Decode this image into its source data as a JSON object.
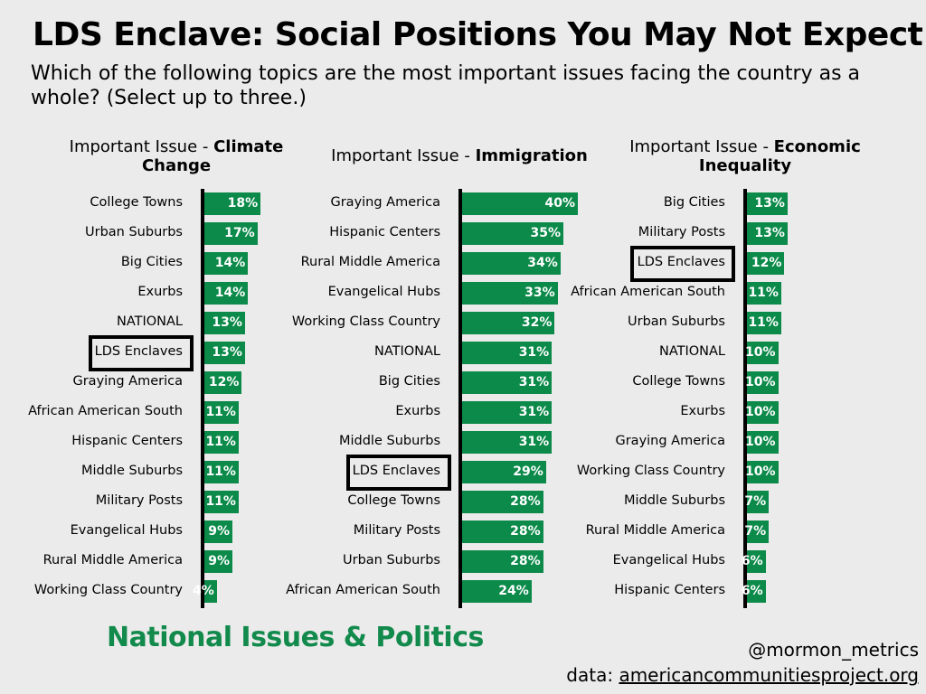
{
  "title": "LDS Enclave: Social Positions You May Not Expect",
  "subtitle": "Which of the following topics are the most important issues facing the country as a whole? (Select up to three.)",
  "footer": {
    "section": "National Issues & Politics",
    "handle": "@mormon_metrics",
    "source_prefix": "data: ",
    "source_link": "americancommunitiesproject.org"
  },
  "colors": {
    "bar": "#0c8a4a",
    "accent_text": "#128a4c",
    "background": "#ebebeb"
  },
  "chart_data": [
    {
      "type": "bar",
      "orientation": "horizontal",
      "title_prefix": "Important Issue - ",
      "title_bold": "Climate Change",
      "highlight": "LDS Enclaves",
      "xlim": [
        0,
        40
      ],
      "unit": "%",
      "categories": [
        "College Towns",
        "Urban Suburbs",
        "Big Cities",
        "Exurbs",
        "NATIONAL",
        "LDS Enclaves",
        "Graying America",
        "African American South",
        "Hispanic Centers",
        "Middle Suburbs",
        "Military Posts",
        "Evangelical Hubs",
        "Rural Middle America",
        "Working Class Country"
      ],
      "values": [
        18,
        17,
        14,
        14,
        13,
        13,
        12,
        11,
        11,
        11,
        11,
        9,
        9,
        4
      ]
    },
    {
      "type": "bar",
      "orientation": "horizontal",
      "title_prefix": "Important Issue - ",
      "title_bold": "Immigration",
      "highlight": "LDS Enclaves",
      "xlim": [
        0,
        40
      ],
      "unit": "%",
      "categories": [
        "Graying America",
        "Hispanic Centers",
        "Rural Middle America",
        "Evangelical Hubs",
        "Working Class Country",
        "NATIONAL",
        "Big Cities",
        "Exurbs",
        "Middle Suburbs",
        "LDS Enclaves",
        "College Towns",
        "Military Posts",
        "Urban Suburbs",
        "African American South"
      ],
      "values": [
        40,
        35,
        34,
        33,
        32,
        31,
        31,
        31,
        31,
        29,
        28,
        28,
        28,
        24
      ]
    },
    {
      "type": "bar",
      "orientation": "horizontal",
      "title_prefix": "Important Issue - ",
      "title_bold": "Economic Inequality",
      "highlight": "LDS Enclaves",
      "xlim": [
        0,
        40
      ],
      "unit": "%",
      "categories": [
        "Big Cities",
        "Military Posts",
        "LDS Enclaves",
        "African American South",
        "Urban Suburbs",
        "NATIONAL",
        "College Towns",
        "Exurbs",
        "Graying America",
        "Working Class Country",
        "Middle Suburbs",
        "Rural Middle America",
        "Evangelical Hubs",
        "Hispanic Centers"
      ],
      "values": [
        13,
        13,
        12,
        11,
        11,
        10,
        10,
        10,
        10,
        10,
        7,
        7,
        6,
        6
      ]
    }
  ]
}
